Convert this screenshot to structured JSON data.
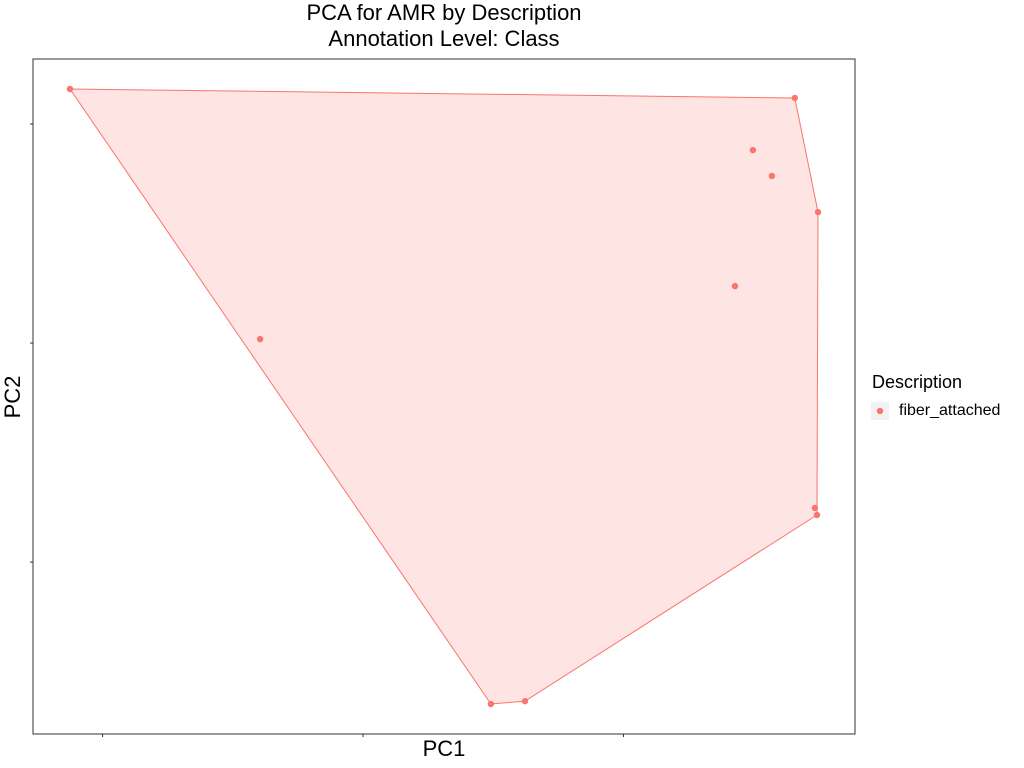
{
  "chart_data": {
    "type": "scatter",
    "title": "PCA for AMR by Description",
    "subtitle": "Annotation Level: Class",
    "x_label": "PC1",
    "y_label": "PC2",
    "legend_title": "Description",
    "legend_position": "right",
    "hull": true,
    "series": [
      {
        "name": "fiber_attached",
        "color": "#F8766D",
        "x": [
          -1.125,
          1.658,
          1.497,
          1.57,
          1.747,
          1.428,
          -0.395,
          1.735,
          1.743,
          0.491,
          0.622
        ],
        "values": [
          1.16,
          1.119,
          0.881,
          0.763,
          0.598,
          0.26,
          0.018,
          -0.753,
          -0.785,
          -1.648,
          -1.635
        ]
      }
    ],
    "xlim": [
      -1.267,
      1.889
    ],
    "ylim": [
      -1.785,
      1.297
    ],
    "xticks": [
      -1,
      0,
      1
    ],
    "yticks": [
      -1,
      0,
      1
    ]
  }
}
